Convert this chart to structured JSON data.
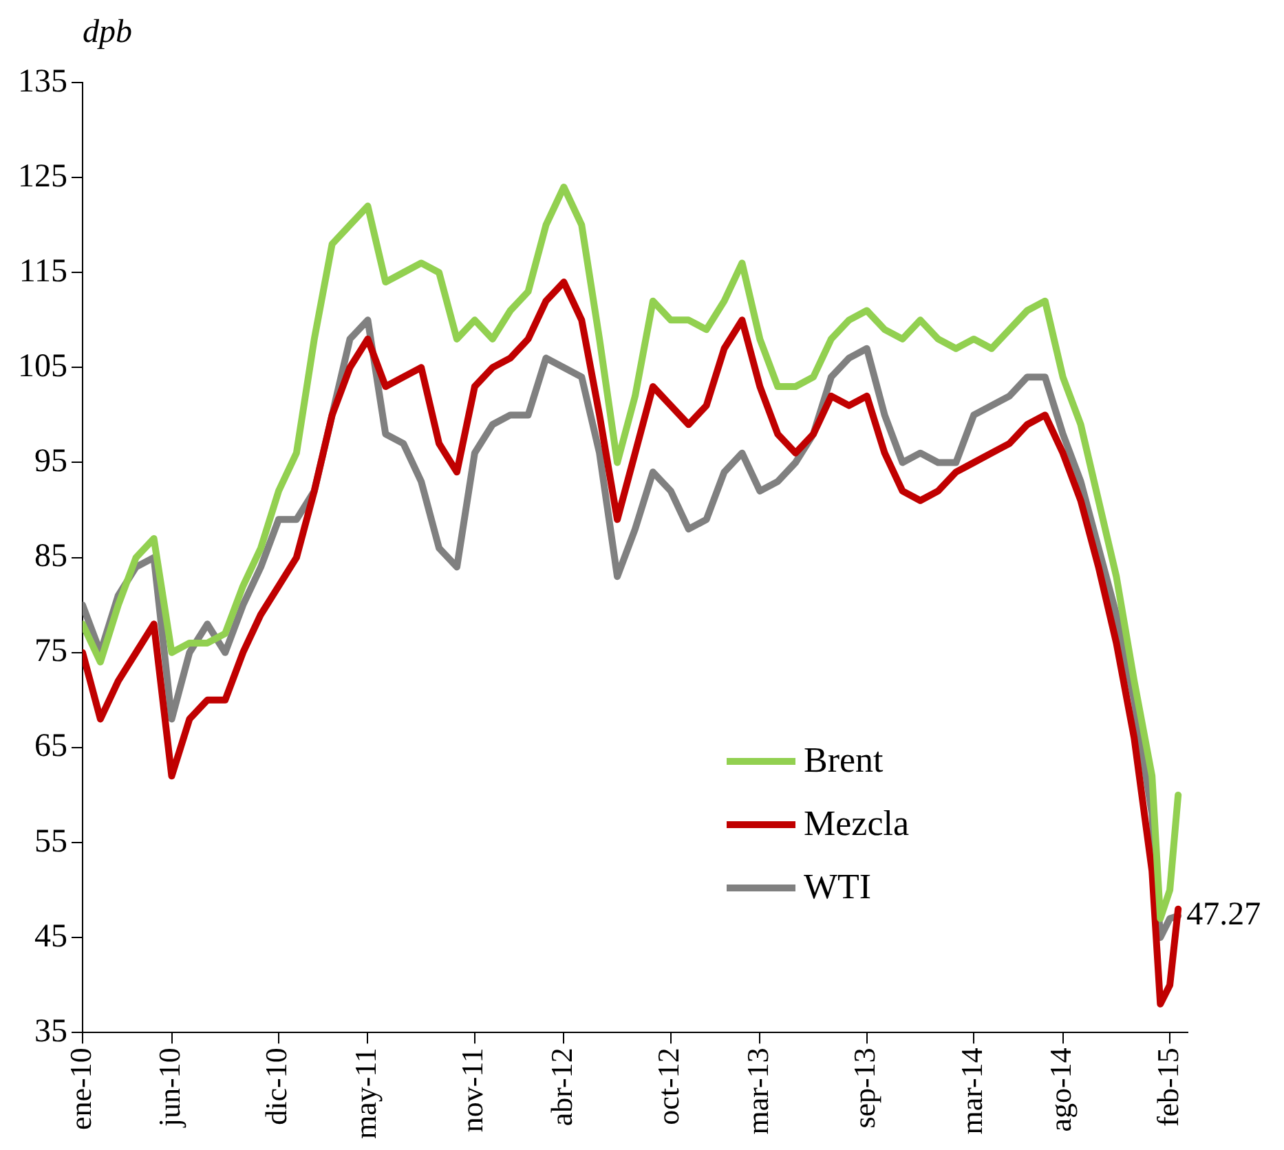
{
  "chart_data": {
    "type": "line",
    "ylabel": "dpb",
    "x": [
      "2010-01-01",
      "2010-02-01",
      "2010-03-01",
      "2010-04-01",
      "2010-05-01",
      "2010-06-01",
      "2010-07-01",
      "2010-08-01",
      "2010-09-01",
      "2010-10-01",
      "2010-11-01",
      "2010-12-01",
      "2011-01-01",
      "2011-02-01",
      "2011-03-01",
      "2011-04-01",
      "2011-05-01",
      "2011-06-01",
      "2011-07-01",
      "2011-08-01",
      "2011-09-01",
      "2011-10-01",
      "2011-11-01",
      "2011-12-01",
      "2012-01-01",
      "2012-02-01",
      "2012-03-01",
      "2012-04-01",
      "2012-05-01",
      "2012-06-01",
      "2012-07-01",
      "2012-08-01",
      "2012-09-01",
      "2012-10-01",
      "2012-11-01",
      "2012-12-01",
      "2013-01-01",
      "2013-02-01",
      "2013-03-01",
      "2013-04-01",
      "2013-05-01",
      "2013-06-01",
      "2013-07-01",
      "2013-08-01",
      "2013-09-01",
      "2013-10-01",
      "2013-11-01",
      "2013-12-01",
      "2014-01-01",
      "2014-02-01",
      "2014-03-01",
      "2014-04-01",
      "2014-05-01",
      "2014-06-01",
      "2014-07-01",
      "2014-08-01",
      "2014-09-01",
      "2014-10-01",
      "2014-11-01",
      "2014-12-01",
      "2015-01-01",
      "2015-01-15",
      "2015-02-01",
      "2015-02-15"
    ],
    "series": [
      {
        "name": "Brent",
        "color": "#92d050",
        "values": [
          78,
          74,
          80,
          85,
          87,
          75,
          76,
          76,
          77,
          82,
          86,
          92,
          96,
          108,
          118,
          120,
          122,
          114,
          115,
          116,
          115,
          108,
          110,
          108,
          111,
          113,
          120,
          124,
          120,
          108,
          95,
          102,
          112,
          110,
          110,
          109,
          112,
          116,
          108,
          103,
          103,
          104,
          108,
          110,
          111,
          109,
          108,
          110,
          108,
          107,
          108,
          107,
          109,
          111,
          112,
          104,
          99,
          91,
          83,
          72,
          62,
          47,
          50,
          60
        ]
      },
      {
        "name": "Mezcla",
        "color": "#c00000",
        "values": [
          75,
          68,
          72,
          75,
          78,
          62,
          68,
          70,
          70,
          75,
          79,
          82,
          85,
          92,
          100,
          105,
          108,
          103,
          104,
          105,
          97,
          94,
          103,
          105,
          106,
          108,
          112,
          114,
          110,
          100,
          89,
          96,
          103,
          101,
          99,
          101,
          107,
          110,
          103,
          98,
          96,
          98,
          102,
          101,
          102,
          96,
          92,
          91,
          92,
          94,
          95,
          96,
          97,
          99,
          100,
          96,
          91,
          84,
          76,
          66,
          52,
          38,
          40,
          48
        ]
      },
      {
        "name": "WTI",
        "color": "#808080",
        "values": [
          80,
          75,
          81,
          84,
          85,
          68,
          75,
          78,
          75,
          80,
          84,
          89,
          89,
          92,
          100,
          108,
          110,
          98,
          97,
          93,
          86,
          84,
          96,
          99,
          100,
          100,
          106,
          105,
          104,
          96,
          83,
          88,
          94,
          92,
          88,
          89,
          94,
          96,
          92,
          93,
          95,
          98,
          104,
          106,
          107,
          100,
          95,
          96,
          95,
          95,
          100,
          101,
          102,
          104,
          104,
          98,
          93,
          86,
          79,
          70,
          58,
          45,
          47,
          47.27
        ]
      }
    ],
    "xticks": [
      {
        "value": "2010-01-01",
        "label": "ene-10"
      },
      {
        "value": "2010-06-01",
        "label": "jun-10"
      },
      {
        "value": "2010-12-01",
        "label": "dic-10"
      },
      {
        "value": "2011-05-01",
        "label": "may-11"
      },
      {
        "value": "2011-11-01",
        "label": "nov-11"
      },
      {
        "value": "2012-04-01",
        "label": "abr-12"
      },
      {
        "value": "2012-10-01",
        "label": "oct-12"
      },
      {
        "value": "2013-03-01",
        "label": "mar-13"
      },
      {
        "value": "2013-09-01",
        "label": "sep-13"
      },
      {
        "value": "2014-03-01",
        "label": "mar-14"
      },
      {
        "value": "2014-08-01",
        "label": "ago-14"
      },
      {
        "value": "2015-02-01",
        "label": "feb-15"
      }
    ],
    "xlim": [
      "2010-01-01",
      "2015-03-01"
    ],
    "ylim": [
      35,
      135
    ],
    "yticks": [
      35,
      45,
      55,
      65,
      75,
      85,
      95,
      105,
      115,
      125,
      135
    ],
    "annotations": [
      {
        "text": "47.27",
        "x": "2015-02-15",
        "y": 47.27
      }
    ],
    "legend": "bottom right",
    "grid": false,
    "marker": "none",
    "line_style": "solid"
  }
}
